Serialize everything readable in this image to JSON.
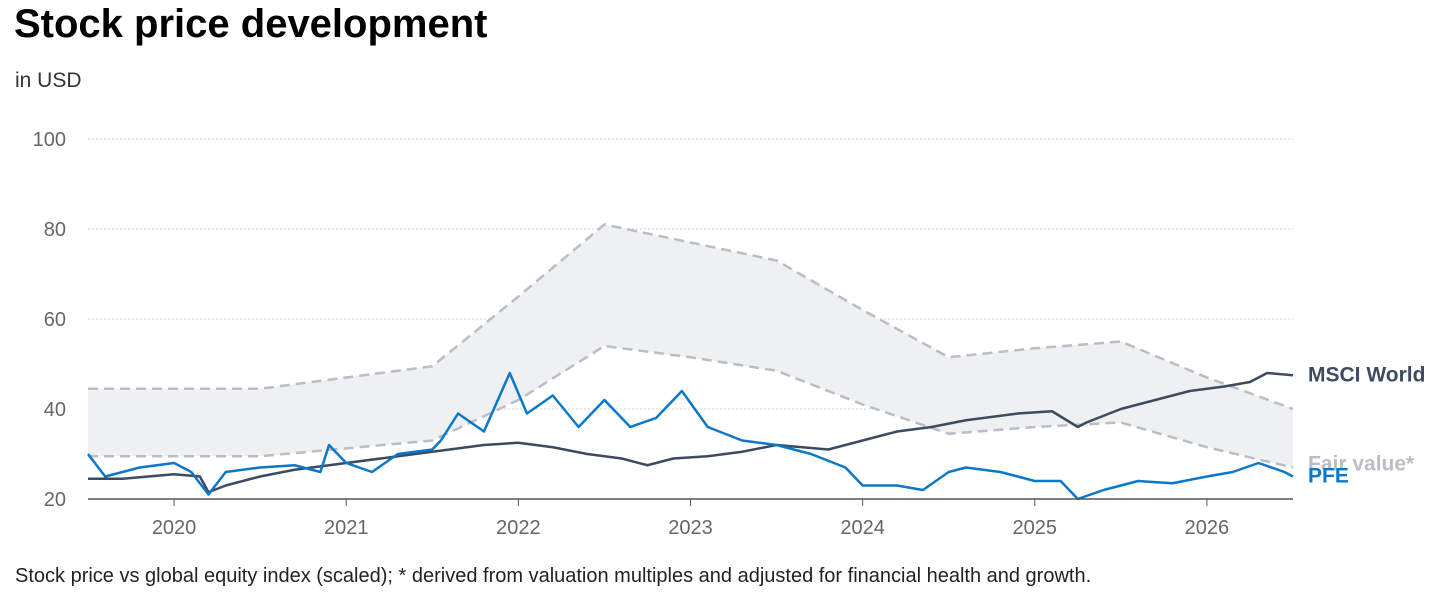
{
  "title": "Stock price development",
  "subtitle": "in USD",
  "footnote": "Stock price vs global equity index (scaled); * derived from valuation multiples and adjusted for financial health and growth.",
  "colors": {
    "pfe": "#0a78c8",
    "msci": "#3d4a60",
    "fair": "#b9bdc6",
    "band": "#eef0f2",
    "grid": "#d3d3d3",
    "axis": "#555555"
  },
  "chart_data": {
    "type": "line",
    "title": "Stock price development",
    "ylabel": "in USD",
    "ylim": [
      20,
      100
    ],
    "xlim": [
      2019.5,
      2026.5
    ],
    "y_ticks": [
      20,
      40,
      60,
      80,
      100
    ],
    "x_ticks": [
      2020,
      2021,
      2022,
      2023,
      2024,
      2025,
      2026
    ],
    "x_tick_labels": [
      "2020",
      "2021",
      "2022",
      "2023",
      "2024",
      "2025",
      "2026"
    ],
    "grid": "horizontal dotted",
    "legend": "end-of-line labels on right",
    "series": [
      {
        "name": "PFE",
        "x": [
          2019.5,
          2019.6,
          2019.8,
          2020.0,
          2020.1,
          2020.2,
          2020.3,
          2020.5,
          2020.7,
          2020.85,
          2020.9,
          2021.0,
          2021.15,
          2021.3,
          2021.5,
          2021.55,
          2021.65,
          2021.8,
          2021.95,
          2022.05,
          2022.2,
          2022.35,
          2022.5,
          2022.65,
          2022.8,
          2022.95,
          2023.1,
          2023.3,
          2023.5,
          2023.7,
          2023.9,
          2024.0,
          2024.2,
          2024.35,
          2024.5,
          2024.6,
          2024.8,
          2025.0,
          2025.15,
          2025.25,
          2025.4,
          2025.6,
          2025.8,
          2026.0,
          2026.15,
          2026.3,
          2026.45,
          2026.5
        ],
        "y": [
          30,
          25,
          27,
          28,
          26,
          21,
          26,
          27,
          27.5,
          26,
          32,
          28,
          26,
          30,
          31,
          33,
          39,
          35,
          48,
          39,
          43,
          36,
          42,
          36,
          38,
          44,
          36,
          33,
          32,
          30,
          27,
          23,
          23,
          22,
          26,
          27,
          26,
          24,
          24,
          20,
          22,
          24,
          23.5,
          25,
          26,
          28,
          26,
          25
        ]
      },
      {
        "name": "MSCI World",
        "x": [
          2019.5,
          2019.7,
          2020.0,
          2020.15,
          2020.2,
          2020.3,
          2020.5,
          2020.7,
          2021.0,
          2021.3,
          2021.6,
          2021.8,
          2022.0,
          2022.2,
          2022.4,
          2022.6,
          2022.75,
          2022.9,
          2023.1,
          2023.3,
          2023.5,
          2023.8,
          2024.0,
          2024.2,
          2024.4,
          2024.6,
          2024.9,
          2025.1,
          2025.25,
          2025.3,
          2025.5,
          2025.7,
          2025.9,
          2026.1,
          2026.25,
          2026.35,
          2026.5
        ],
        "y": [
          24.5,
          24.5,
          25.5,
          25,
          21.5,
          23,
          25,
          26.5,
          28,
          29.5,
          31,
          32,
          32.5,
          31.5,
          30,
          29,
          27.5,
          29,
          29.5,
          30.5,
          32,
          31,
          33,
          35,
          36,
          37.5,
          39,
          39.5,
          36,
          37,
          40,
          42,
          44,
          45,
          46,
          48,
          47.5
        ]
      },
      {
        "name": "Fair value*",
        "x": [
          2019.5,
          2020.5,
          2021.5,
          2022.0,
          2022.5,
          2023.0,
          2023.5,
          2024.0,
          2024.5,
          2025.0,
          2025.5,
          2026.0,
          2026.5
        ],
        "y_upper": [
          44.5,
          44.5,
          49.5,
          65,
          81,
          77,
          73,
          62,
          51.5,
          53.5,
          55,
          47,
          40
        ],
        "y_lower": [
          29.5,
          29.5,
          33,
          42,
          54,
          51.5,
          48.5,
          41,
          34.5,
          36,
          37,
          31.5,
          27
        ]
      }
    ]
  }
}
